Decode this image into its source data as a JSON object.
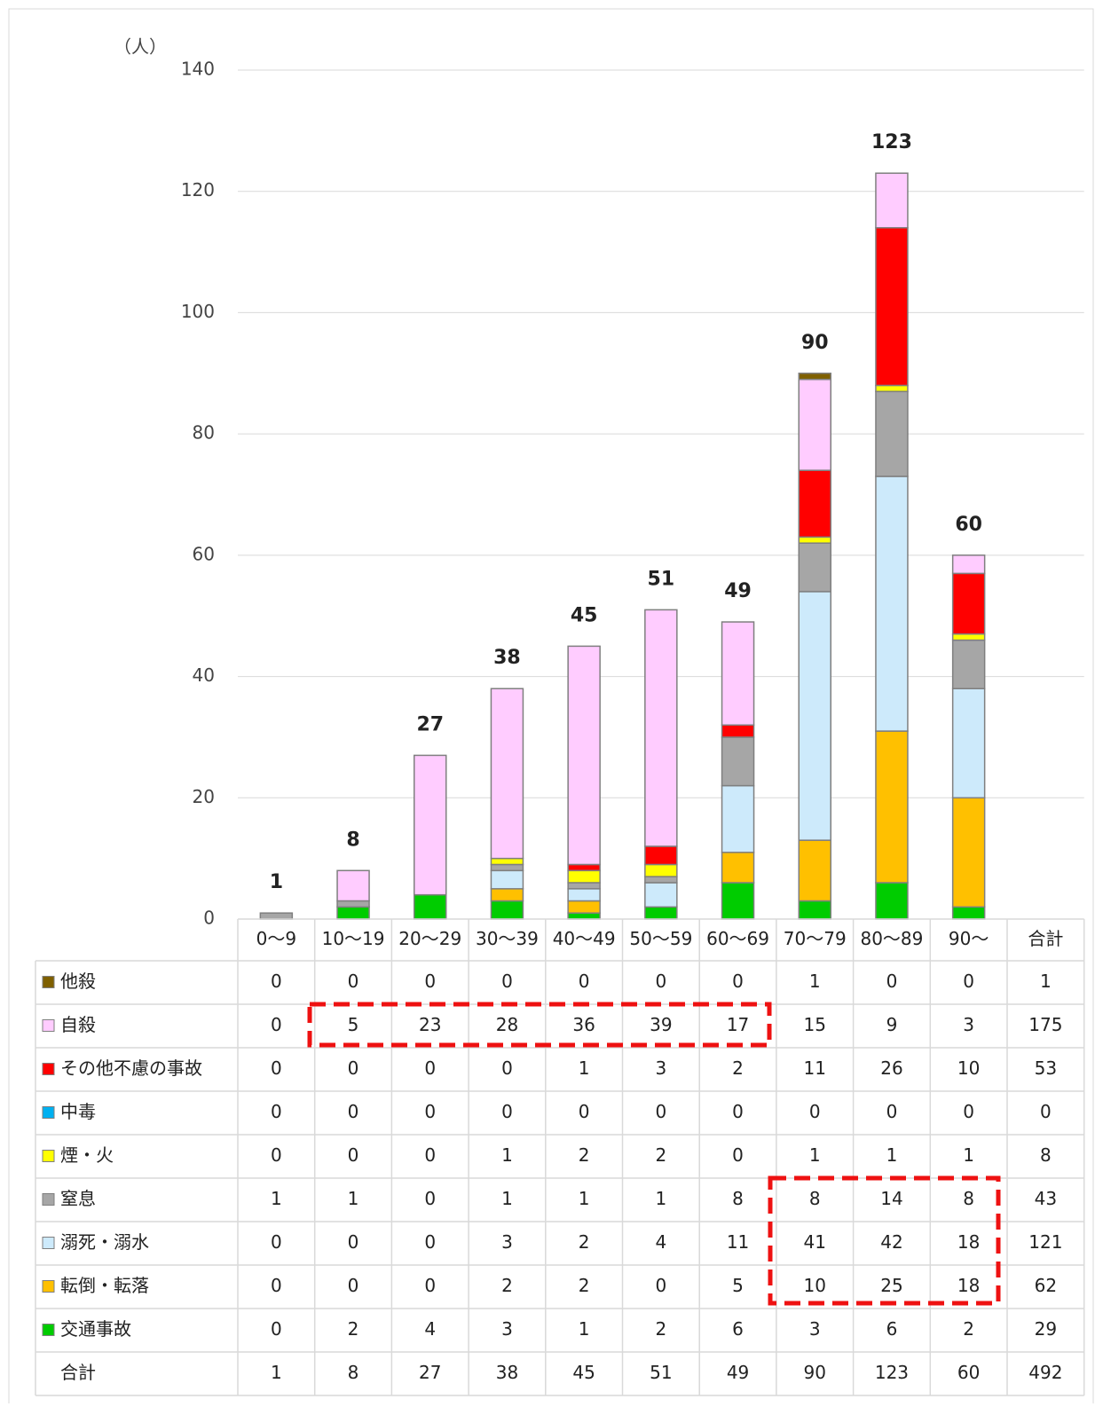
{
  "chart_data": {
    "type": "stacked_bar",
    "y_label": "（人）",
    "categories": [
      "0〜9",
      "10〜19",
      "20〜29",
      "30〜39",
      "40〜49",
      "50〜59",
      "60〜69",
      "70〜79",
      "80〜89",
      "90〜"
    ],
    "total_label": "合計",
    "series": [
      {
        "name": "他殺",
        "color": "#7f6000",
        "values": [
          0,
          0,
          0,
          0,
          0,
          0,
          0,
          1,
          0,
          0
        ],
        "total": 1
      },
      {
        "name": "自殺",
        "color": "#ffccff",
        "values": [
          0,
          5,
          23,
          28,
          36,
          39,
          17,
          15,
          9,
          3
        ],
        "total": 175
      },
      {
        "name": "その他不慮の事故",
        "color": "#ff0000",
        "values": [
          0,
          0,
          0,
          0,
          1,
          3,
          2,
          11,
          26,
          10
        ],
        "total": 53
      },
      {
        "name": "中毒",
        "color": "#00b0f0",
        "values": [
          0,
          0,
          0,
          0,
          0,
          0,
          0,
          0,
          0,
          0
        ],
        "total": 0
      },
      {
        "name": "煙・火",
        "color": "#ffff00",
        "values": [
          0,
          0,
          0,
          1,
          2,
          2,
          0,
          1,
          1,
          1
        ],
        "total": 8
      },
      {
        "name": "窒息",
        "color": "#a6a6a6",
        "values": [
          1,
          1,
          0,
          1,
          1,
          1,
          8,
          8,
          14,
          8
        ],
        "total": 43
      },
      {
        "name": "溺死・溺水",
        "color": "#cdeafb",
        "values": [
          0,
          0,
          0,
          3,
          2,
          4,
          11,
          41,
          42,
          18
        ],
        "total": 121
      },
      {
        "name": "転倒・転落",
        "color": "#ffc000",
        "values": [
          0,
          0,
          0,
          2,
          2,
          0,
          5,
          10,
          25,
          18
        ],
        "total": 62
      },
      {
        "name": "交通事故",
        "color": "#00cc00",
        "values": [
          0,
          2,
          4,
          3,
          1,
          2,
          6,
          3,
          6,
          2
        ],
        "total": 29
      }
    ],
    "totals": [
      1,
      8,
      27,
      38,
      45,
      51,
      49,
      90,
      123,
      60
    ],
    "grand_total": 492,
    "ylim": [
      0,
      140
    ],
    "yticks": [
      0,
      20,
      40,
      60,
      80,
      100,
      120,
      140
    ],
    "grid": true
  }
}
